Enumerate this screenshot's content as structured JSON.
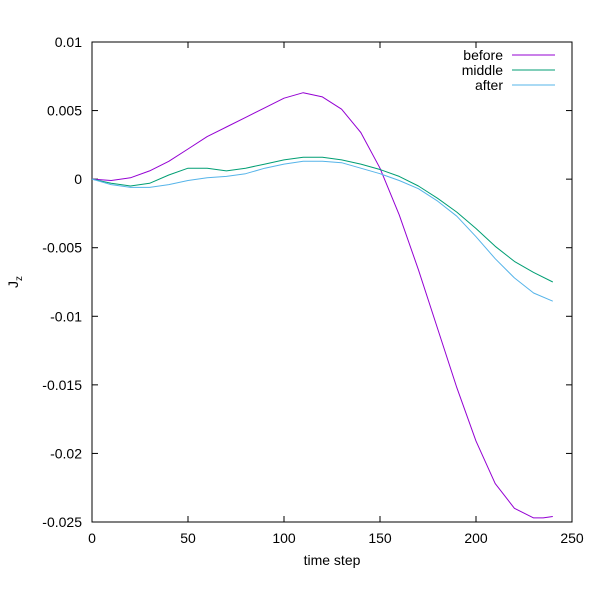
{
  "chart_data": {
    "type": "line",
    "xlabel": "time step",
    "ylabel_main": "J",
    "ylabel_sub": "z",
    "xlim": [
      0,
      250
    ],
    "ylim": [
      -0.025,
      0.01
    ],
    "x_ticks": [
      0,
      50,
      100,
      150,
      200,
      250
    ],
    "x_tick_labels": [
      "0",
      "50",
      "100",
      "150",
      "200",
      "250"
    ],
    "y_ticks": [
      0.01,
      0.005,
      0,
      -0.005,
      -0.01,
      -0.015,
      -0.02,
      -0.025
    ],
    "y_tick_labels": [
      "0.01",
      "0.005",
      "0",
      "-0.005",
      "-0.01",
      "-0.015",
      "-0.02",
      "-0.025"
    ],
    "grid": false,
    "legend_position": "top-right",
    "series": [
      {
        "name": "before",
        "color": "#9400d3",
        "x": [
          0,
          10,
          20,
          30,
          40,
          50,
          60,
          70,
          80,
          90,
          100,
          110,
          120,
          130,
          140,
          150,
          160,
          170,
          180,
          190,
          200,
          210,
          220,
          230,
          235,
          240
        ],
        "y": [
          0,
          -0.0001,
          0.0001,
          0.0006,
          0.0013,
          0.0022,
          0.0031,
          0.0038,
          0.0045,
          0.0052,
          0.0059,
          0.0063,
          0.006,
          0.0051,
          0.0034,
          0.0008,
          -0.0026,
          -0.0066,
          -0.0109,
          -0.0152,
          -0.0191,
          -0.0222,
          -0.024,
          -0.0247,
          -0.0247,
          -0.0246
        ]
      },
      {
        "name": "middle",
        "color": "#009e73",
        "x": [
          0,
          10,
          20,
          30,
          40,
          50,
          60,
          70,
          80,
          90,
          100,
          110,
          120,
          130,
          140,
          150,
          160,
          170,
          180,
          190,
          200,
          210,
          220,
          230,
          240
        ],
        "y": [
          0,
          -0.0003,
          -0.0005,
          -0.0003,
          0.0003,
          0.0008,
          0.0008,
          0.0006,
          0.0008,
          0.0011,
          0.0014,
          0.0016,
          0.0016,
          0.0014,
          0.0011,
          0.0007,
          0.0002,
          -0.0005,
          -0.0014,
          -0.0024,
          -0.0036,
          -0.0049,
          -0.006,
          -0.0068,
          -0.0075
        ]
      },
      {
        "name": "after",
        "color": "#56b4e9",
        "x": [
          0,
          10,
          20,
          30,
          40,
          50,
          60,
          70,
          80,
          90,
          100,
          110,
          120,
          130,
          140,
          150,
          160,
          170,
          180,
          190,
          200,
          210,
          220,
          230,
          240
        ],
        "y": [
          0,
          -0.0004,
          -0.0006,
          -0.0006,
          -0.0004,
          -0.0001,
          0.0001,
          0.0002,
          0.0004,
          0.0008,
          0.0011,
          0.0013,
          0.0013,
          0.0012,
          0.0008,
          0.0004,
          -0.0001,
          -0.0007,
          -0.0016,
          -0.0027,
          -0.0042,
          -0.0058,
          -0.0072,
          -0.0083,
          -0.0089
        ]
      }
    ]
  }
}
